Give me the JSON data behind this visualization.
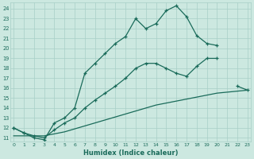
{
  "title": "",
  "xlabel": "Humidex (Indice chaleur)",
  "bg_color": "#cce8e0",
  "grid_color": "#a8cfc7",
  "line_color": "#1a6b5a",
  "x_ticks": [
    0,
    1,
    2,
    3,
    4,
    5,
    6,
    7,
    8,
    9,
    10,
    11,
    12,
    13,
    14,
    15,
    16,
    17,
    18,
    19,
    20,
    21,
    22,
    23
  ],
  "y_ticks": [
    11,
    12,
    13,
    14,
    15,
    16,
    17,
    18,
    19,
    20,
    21,
    22,
    23,
    24
  ],
  "xlim": [
    -0.3,
    23.3
  ],
  "ylim": [
    10.6,
    24.6
  ],
  "line1_x": [
    0,
    1,
    2,
    3,
    4,
    5,
    6,
    7,
    8,
    9,
    10,
    11,
    12,
    13,
    14,
    15,
    16,
    17,
    18,
    19,
    20
  ],
  "line1_y": [
    12.0,
    11.5,
    11.0,
    10.8,
    12.5,
    13.0,
    14.0,
    17.5,
    18.5,
    19.5,
    20.5,
    21.2,
    23.0,
    22.0,
    22.5,
    23.8,
    24.3,
    23.2,
    21.3,
    20.5,
    20.3
  ],
  "line2_x": [
    0,
    1,
    2,
    3,
    4,
    5,
    6,
    7,
    8,
    9,
    10,
    11,
    12,
    13,
    14,
    15,
    16,
    17,
    18,
    19,
    20,
    22,
    23
  ],
  "line2_y": [
    12.0,
    11.5,
    11.2,
    11.0,
    11.8,
    12.5,
    13.0,
    14.0,
    14.8,
    15.5,
    16.2,
    17.0,
    18.0,
    18.5,
    18.5,
    18.0,
    17.5,
    17.2,
    18.2,
    19.0,
    19.0,
    16.2,
    15.8
  ],
  "line3_x": [
    0,
    1,
    2,
    3,
    4,
    5,
    6,
    7,
    8,
    9,
    10,
    11,
    12,
    13,
    14,
    15,
    16,
    17,
    18,
    19,
    20,
    21,
    22,
    23
  ],
  "line3_y": [
    11.2,
    11.2,
    11.2,
    11.2,
    11.4,
    11.6,
    11.9,
    12.2,
    12.5,
    12.8,
    13.1,
    13.4,
    13.7,
    14.0,
    14.3,
    14.5,
    14.7,
    14.9,
    15.1,
    15.3,
    15.5,
    15.6,
    15.7,
    15.8
  ]
}
